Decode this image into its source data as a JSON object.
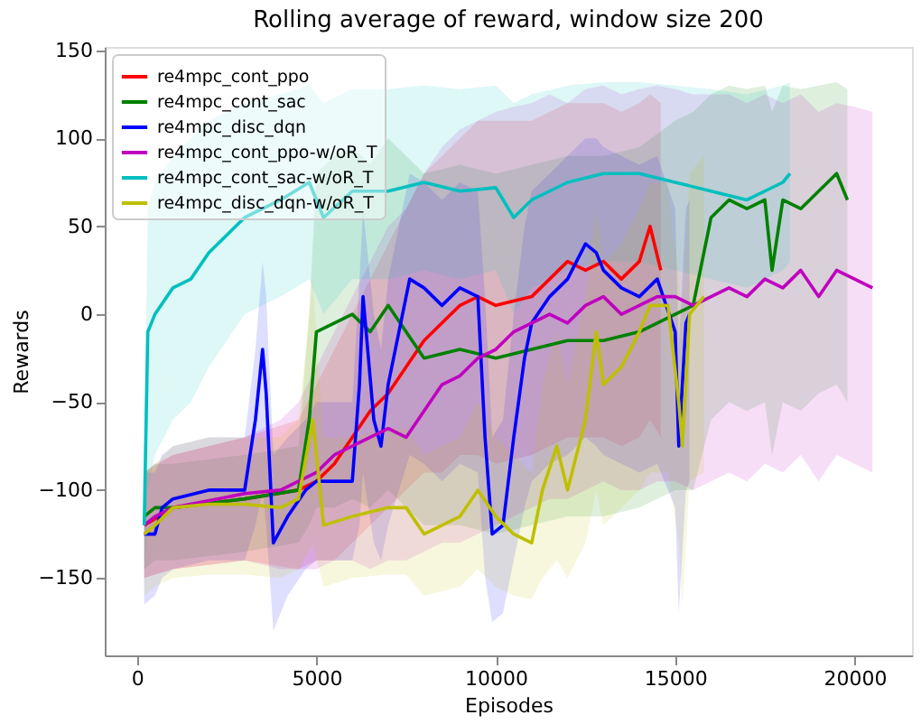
{
  "chart_data": {
    "type": "line",
    "title": "Rolling average of reward, window size 200",
    "xlabel": "Episodes",
    "ylabel": "Rewards",
    "xlim": [
      -900,
      21600
    ],
    "ylim": [
      -194,
      152
    ],
    "xticks": [
      0,
      5000,
      10000,
      15000,
      20000
    ],
    "yticks": [
      -150,
      -100,
      -50,
      0,
      50,
      100,
      150
    ],
    "grid": false,
    "legend": "top left",
    "line_style": "solid",
    "marker": "none",
    "series": [
      {
        "name": "re4mpc_cont_ppo",
        "color": "#ff0000",
        "x": [
          200,
          1000,
          3000,
          4500,
          5000,
          5500,
          6000,
          6500,
          7000,
          7500,
          8000,
          8500,
          9000,
          9500,
          10000,
          11000,
          11500,
          12000,
          12500,
          13000,
          13500,
          14000,
          14300,
          14600
        ],
        "values": [
          -120,
          -110,
          -105,
          -100,
          -95,
          -85,
          -70,
          -55,
          -45,
          -30,
          -15,
          -5,
          5,
          10,
          5,
          10,
          20,
          30,
          25,
          30,
          20,
          30,
          50,
          25
        ],
        "lower": [
          -150,
          -145,
          -140,
          -145,
          -140,
          -140,
          -130,
          -120,
          -110,
          -100,
          -90,
          -90,
          -80,
          -80,
          -85,
          -80,
          -75,
          -70,
          -70,
          -70,
          -75,
          -70,
          -60,
          -70
        ],
        "upper": [
          -90,
          -80,
          -70,
          -60,
          -40,
          -20,
          0,
          20,
          40,
          60,
          80,
          90,
          100,
          110,
          110,
          110,
          115,
          120,
          120,
          120,
          115,
          120,
          125,
          120
        ]
      },
      {
        "name": "re4mpc_cont_sac",
        "color": "#008000",
        "x": [
          200,
          500,
          1000,
          3000,
          4500,
          4800,
          5000,
          5500,
          6000,
          6500,
          7000,
          7500,
          8000,
          9000,
          10000,
          11000,
          12000,
          13000,
          14000,
          15000,
          15500,
          16000,
          16500,
          17000,
          17500,
          17700,
          18000,
          18500,
          19000,
          19500,
          19800
        ],
        "values": [
          -115,
          -110,
          -110,
          -105,
          -100,
          -60,
          -10,
          -5,
          0,
          -10,
          5,
          -10,
          -25,
          -20,
          -25,
          -20,
          -15,
          -15,
          -10,
          0,
          5,
          55,
          65,
          60,
          65,
          25,
          65,
          60,
          70,
          80,
          65
        ],
        "lower": [
          -145,
          -140,
          -140,
          -135,
          -130,
          -120,
          -110,
          -110,
          -105,
          -110,
          -100,
          -110,
          -120,
          -120,
          -125,
          -120,
          -115,
          -115,
          -110,
          -100,
          -100,
          -60,
          -50,
          -55,
          -50,
          -80,
          -50,
          -55,
          -45,
          -40,
          -50
        ],
        "upper": [
          -90,
          -85,
          -85,
          -80,
          -75,
          0,
          80,
          90,
          95,
          85,
          100,
          90,
          80,
          85,
          80,
          85,
          90,
          90,
          95,
          110,
          115,
          125,
          130,
          128,
          130,
          115,
          130,
          128,
          130,
          132,
          128
        ]
      },
      {
        "name": "re4mpc_disc_dqn",
        "color": "#0000ff",
        "x": [
          200,
          500,
          700,
          1000,
          2000,
          3000,
          3300,
          3500,
          3600,
          3800,
          4200,
          4700,
          5000,
          6000,
          6200,
          6300,
          6600,
          6800,
          7000,
          7300,
          7600,
          8000,
          8500,
          9000,
          9500,
          9700,
          9900,
          10200,
          10500,
          10800,
          11000,
          11500,
          12000,
          12500,
          12800,
          13000,
          13500,
          14000,
          14500,
          15000,
          15100,
          15300,
          15400
        ],
        "values": [
          -125,
          -125,
          -110,
          -105,
          -100,
          -100,
          -60,
          -20,
          -45,
          -130,
          -115,
          -100,
          -95,
          -95,
          -40,
          10,
          -60,
          -75,
          -40,
          -10,
          20,
          15,
          5,
          15,
          10,
          -70,
          -125,
          -120,
          -70,
          -25,
          -5,
          10,
          20,
          40,
          35,
          25,
          15,
          10,
          20,
          -10,
          -75,
          -5,
          0
        ],
        "lower": [
          -165,
          -160,
          -150,
          -145,
          -140,
          -140,
          -120,
          -100,
          -120,
          -180,
          -160,
          -145,
          -140,
          -140,
          -120,
          -90,
          -130,
          -140,
          -120,
          -100,
          -80,
          -85,
          -95,
          -85,
          -90,
          -150,
          -175,
          -170,
          -140,
          -110,
          -95,
          -85,
          -80,
          -70,
          -75,
          -80,
          -85,
          -90,
          -85,
          -110,
          -170,
          -100,
          -95
        ],
        "upper": [
          -90,
          -90,
          -80,
          -75,
          -70,
          -70,
          -20,
          30,
          10,
          -80,
          -70,
          -60,
          -50,
          -50,
          20,
          60,
          0,
          -20,
          20,
          50,
          80,
          75,
          65,
          75,
          70,
          10,
          -70,
          -60,
          0,
          50,
          70,
          80,
          90,
          100,
          100,
          95,
          90,
          85,
          90,
          60,
          -20,
          60,
          65
        ]
      },
      {
        "name": "re4mpc_cont_ppo-w/oR_T",
        "color": "#bf00bf",
        "x": [
          200,
          500,
          1000,
          3000,
          4000,
          4500,
          5000,
          5500,
          6000,
          6500,
          7000,
          7500,
          8000,
          8500,
          9000,
          9500,
          10000,
          10500,
          11000,
          11500,
          12000,
          12500,
          13000,
          13500,
          14000,
          14500,
          15000,
          15500,
          16000,
          16500,
          17000,
          17500,
          18000,
          18500,
          19000,
          19500,
          20000,
          20500
        ],
        "values": [
          -120,
          -115,
          -110,
          -102,
          -100,
          -95,
          -90,
          -80,
          -75,
          -70,
          -65,
          -70,
          -55,
          -40,
          -35,
          -25,
          -20,
          -10,
          -5,
          0,
          -5,
          5,
          10,
          0,
          5,
          10,
          10,
          5,
          10,
          15,
          10,
          20,
          15,
          25,
          10,
          25,
          20,
          15
        ],
        "lower": [
          -150,
          -148,
          -145,
          -140,
          -145,
          -145,
          -145,
          -140,
          -140,
          -145,
          -140,
          -140,
          -135,
          -130,
          -130,
          -125,
          -120,
          -115,
          -110,
          -105,
          -105,
          -100,
          -95,
          -100,
          -100,
          -95,
          -95,
          -100,
          -95,
          -90,
          -95,
          -85,
          -90,
          -80,
          -95,
          -80,
          -85,
          -90
        ],
        "upper": [
          -90,
          -85,
          -80,
          -70,
          -60,
          -50,
          -30,
          -10,
          10,
          30,
          50,
          60,
          80,
          95,
          105,
          110,
          115,
          118,
          120,
          125,
          120,
          128,
          130,
          125,
          128,
          130,
          128,
          125,
          125,
          125,
          120,
          125,
          120,
          125,
          115,
          120,
          118,
          115
        ]
      },
      {
        "name": "re4mpc_cont_sac-w/oR_T",
        "color": "#00bfbf",
        "x": [
          200,
          300,
          500,
          1000,
          1500,
          2000,
          3000,
          4000,
          4800,
          5200,
          6000,
          7000,
          8000,
          9000,
          10000,
          10500,
          11000,
          12000,
          13000,
          14000,
          15000,
          16000,
          17000,
          18000,
          18200
        ],
        "values": [
          -120,
          -10,
          0,
          15,
          20,
          35,
          55,
          65,
          75,
          55,
          70,
          70,
          75,
          70,
          72,
          55,
          65,
          75,
          80,
          80,
          75,
          70,
          65,
          75,
          80
        ],
        "lower": [
          -160,
          -100,
          -80,
          -60,
          -50,
          -30,
          0,
          10,
          20,
          0,
          20,
          20,
          25,
          20,
          25,
          0,
          15,
          25,
          30,
          30,
          25,
          20,
          15,
          25,
          30
        ],
        "upper": [
          -80,
          60,
          75,
          90,
          100,
          110,
          120,
          125,
          130,
          120,
          128,
          128,
          130,
          128,
          130,
          120,
          125,
          130,
          132,
          132,
          130,
          128,
          125,
          130,
          132
        ]
      },
      {
        "name": "re4mpc_disc_dqn-w/oR_T",
        "color": "#bfbf00",
        "x": [
          200,
          500,
          1000,
          2000,
          3000,
          4000,
          4500,
          4900,
          5200,
          6000,
          7000,
          7500,
          8000,
          9000,
          9500,
          10000,
          10500,
          11000,
          11300,
          11700,
          12000,
          12500,
          12800,
          13000,
          13500,
          14000,
          14300,
          14800,
          15100,
          15200,
          15400,
          15800
        ],
        "values": [
          -125,
          -120,
          -110,
          -108,
          -108,
          -110,
          -105,
          -60,
          -120,
          -115,
          -110,
          -110,
          -125,
          -115,
          -100,
          -115,
          -125,
          -130,
          -100,
          -75,
          -100,
          -60,
          -10,
          -40,
          -30,
          -10,
          5,
          5,
          -50,
          -75,
          0,
          10
        ],
        "lower": [
          -160,
          -155,
          -150,
          -148,
          -148,
          -150,
          -145,
          -130,
          -155,
          -150,
          -148,
          -148,
          -160,
          -155,
          -145,
          -155,
          -160,
          -162,
          -150,
          -140,
          -150,
          -130,
          -100,
          -120,
          -110,
          -100,
          -90,
          -90,
          -130,
          -165,
          -95,
          -90
        ],
        "upper": [
          -90,
          -85,
          -75,
          -70,
          -70,
          -70,
          -60,
          20,
          -70,
          -70,
          -65,
          -65,
          -80,
          -70,
          -50,
          -70,
          -80,
          -90,
          -40,
          -10,
          -40,
          10,
          60,
          30,
          40,
          60,
          75,
          75,
          20,
          0,
          80,
          90
        ]
      }
    ]
  }
}
